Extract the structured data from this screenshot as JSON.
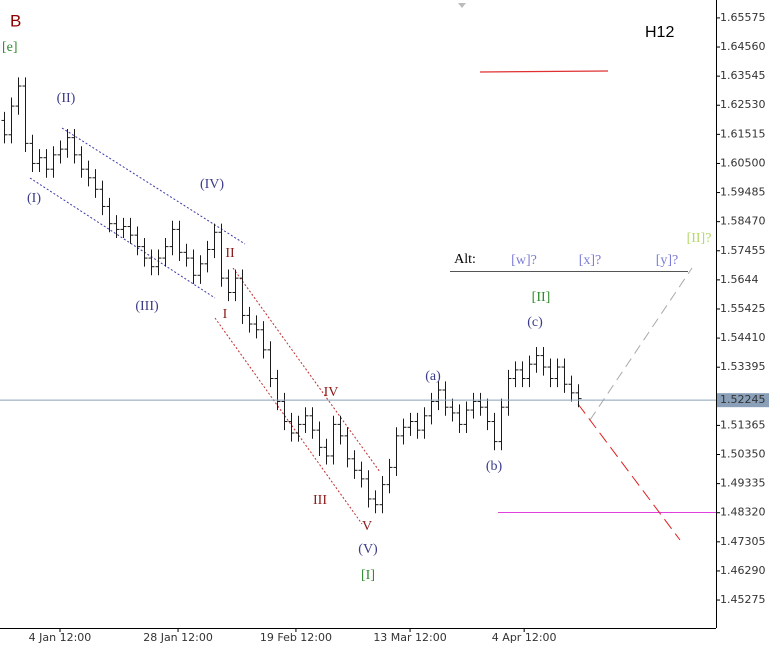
{
  "chart_data": {
    "type": "ohlc",
    "symbol_label": "B",
    "wave_label": "[e]",
    "timeframe": "H12",
    "x": [
      0,
      1,
      2,
      3,
      4,
      5,
      6,
      7,
      8,
      9,
      10,
      11,
      12,
      13,
      14,
      15,
      16,
      17,
      18,
      19,
      20,
      21,
      22,
      23,
      24,
      25,
      26,
      27,
      28,
      29,
      30,
      31,
      32,
      33,
      34,
      35,
      36,
      37,
      38,
      39,
      40,
      41,
      42,
      43,
      44,
      45,
      46,
      47,
      48,
      49,
      50,
      51,
      52,
      53,
      54,
      55,
      56,
      57,
      58,
      59,
      60,
      61,
      62,
      63,
      64,
      65,
      66,
      67,
      68,
      69,
      70,
      71,
      72,
      73,
      74,
      75,
      76,
      77,
      78,
      79,
      80,
      81,
      82
    ],
    "open": [
      1.62,
      1.615,
      1.625,
      1.632,
      1.612,
      1.605,
      1.607,
      1.603,
      1.608,
      1.61,
      1.614,
      1.608,
      1.603,
      1.6,
      1.596,
      1.59,
      1.584,
      1.582,
      1.583,
      1.58,
      1.576,
      1.572,
      1.569,
      1.572,
      1.576,
      1.582,
      1.574,
      1.572,
      1.566,
      1.57,
      1.575,
      1.581,
      1.565,
      1.56,
      1.565,
      1.552,
      1.549,
      1.547,
      1.54,
      1.53,
      1.522,
      1.515,
      1.511,
      1.514,
      1.517,
      1.512,
      1.506,
      1.503,
      1.514,
      1.51,
      1.502,
      1.498,
      1.495,
      1.488,
      1.486,
      1.493,
      1.499,
      1.51,
      1.513,
      1.515,
      1.512,
      1.517,
      1.522,
      1.526,
      1.52,
      1.518,
      1.514,
      1.519,
      1.522,
      1.52,
      1.515,
      1.508,
      1.52,
      1.53,
      1.533,
      1.53,
      1.535,
      1.538,
      1.534,
      1.53,
      1.534,
      1.528,
      1.525
    ],
    "high": [
      1.623,
      1.628,
      1.635,
      1.635,
      1.615,
      1.61,
      1.61,
      1.611,
      1.613,
      1.617,
      1.617,
      1.611,
      1.606,
      1.603,
      1.599,
      1.593,
      1.587,
      1.586,
      1.586,
      1.583,
      1.579,
      1.575,
      1.575,
      1.579,
      1.585,
      1.585,
      1.577,
      1.575,
      1.573,
      1.578,
      1.584,
      1.584,
      1.568,
      1.568,
      1.568,
      1.555,
      1.552,
      1.55,
      1.543,
      1.533,
      1.525,
      1.518,
      1.517,
      1.52,
      1.52,
      1.515,
      1.509,
      1.517,
      1.517,
      1.513,
      1.505,
      1.501,
      1.498,
      1.491,
      1.496,
      1.502,
      1.513,
      1.516,
      1.518,
      1.518,
      1.52,
      1.525,
      1.529,
      1.529,
      1.523,
      1.521,
      1.522,
      1.525,
      1.525,
      1.523,
      1.518,
      1.523,
      1.533,
      1.536,
      1.536,
      1.538,
      1.541,
      1.541,
      1.537,
      1.537,
      1.537,
      1.531,
      1.528
    ],
    "low": [
      1.612,
      1.612,
      1.622,
      1.609,
      1.602,
      1.602,
      1.6,
      1.6,
      1.605,
      1.607,
      1.605,
      1.6,
      1.597,
      1.593,
      1.587,
      1.581,
      1.579,
      1.579,
      1.577,
      1.573,
      1.569,
      1.566,
      1.566,
      1.569,
      1.573,
      1.571,
      1.569,
      1.563,
      1.563,
      1.567,
      1.572,
      1.562,
      1.557,
      1.557,
      1.549,
      1.546,
      1.544,
      1.537,
      1.527,
      1.519,
      1.512,
      1.508,
      1.508,
      1.511,
      1.509,
      1.503,
      1.5,
      1.5,
      1.507,
      1.499,
      1.495,
      1.492,
      1.485,
      1.483,
      1.483,
      1.49,
      1.496,
      1.507,
      1.51,
      1.509,
      1.509,
      1.514,
      1.519,
      1.517,
      1.515,
      1.511,
      1.511,
      1.516,
      1.517,
      1.512,
      1.505,
      1.505,
      1.517,
      1.527,
      1.527,
      1.527,
      1.532,
      1.531,
      1.527,
      1.527,
      1.525,
      1.522,
      1.52
    ],
    "close": [
      1.615,
      1.625,
      1.632,
      1.612,
      1.605,
      1.607,
      1.603,
      1.608,
      1.61,
      1.614,
      1.608,
      1.603,
      1.6,
      1.596,
      1.59,
      1.584,
      1.582,
      1.583,
      1.58,
      1.576,
      1.572,
      1.569,
      1.572,
      1.576,
      1.582,
      1.574,
      1.572,
      1.566,
      1.57,
      1.575,
      1.581,
      1.565,
      1.56,
      1.565,
      1.552,
      1.549,
      1.547,
      1.54,
      1.53,
      1.522,
      1.515,
      1.511,
      1.514,
      1.517,
      1.512,
      1.506,
      1.503,
      1.514,
      1.51,
      1.502,
      1.498,
      1.495,
      1.488,
      1.486,
      1.493,
      1.499,
      1.51,
      1.513,
      1.515,
      1.512,
      1.517,
      1.522,
      1.526,
      1.52,
      1.518,
      1.514,
      1.519,
      1.522,
      1.52,
      1.515,
      1.508,
      1.52,
      1.53,
      1.533,
      1.53,
      1.535,
      1.538,
      1.534,
      1.53,
      1.534,
      1.528,
      1.525,
      1.523
    ],
    "color": "#1a1a1a",
    "xlim": [
      -0.57,
      101.7
    ],
    "ylim": [
      1.443,
      1.662
    ],
    "xticks": [
      {
        "value": 8.0,
        "label": "4 Jan 12:00"
      },
      {
        "value": 24.86,
        "label": "28 Jan 12:00"
      },
      {
        "value": 41.7,
        "label": "19 Feb 12:00"
      },
      {
        "value": 58.0,
        "label": "13 Mar 12:00"
      },
      {
        "value": 74.3,
        "label": "4 Apr 12:00"
      }
    ],
    "yticks": [
      1.65575,
      {
        "value": 1.6456,
        "label": "1.64560"
      },
      1.63545,
      {
        "value": 1.6253,
        "label": "1.62530"
      },
      1.61515,
      {
        "value": 1.605,
        "label": "1.60500"
      },
      1.59485,
      {
        "value": 1.5847,
        "label": "1.58470"
      },
      1.57455,
      1.5644,
      1.55425,
      {
        "value": 1.5441,
        "label": "1.54410"
      },
      1.53395,
      1.51365,
      {
        "value": 1.5035,
        "label": "1.50350"
      },
      1.49335,
      {
        "value": 1.4832,
        "label": "1.48320"
      },
      1.47305,
      {
        "value": 1.4629,
        "label": "1.46290"
      },
      1.45275
    ],
    "current_price": 1.52245,
    "annotations": [
      "(II)",
      "(I)",
      "(IV)",
      "(III)",
      "II",
      "I",
      "IV",
      "III",
      "V",
      "(V)",
      "[I]",
      "(a)",
      "(b)",
      "(c)",
      "[II]",
      "Alt:",
      "[w]?",
      "[x]?",
      "[y]?",
      "[II]?"
    ]
  }
}
